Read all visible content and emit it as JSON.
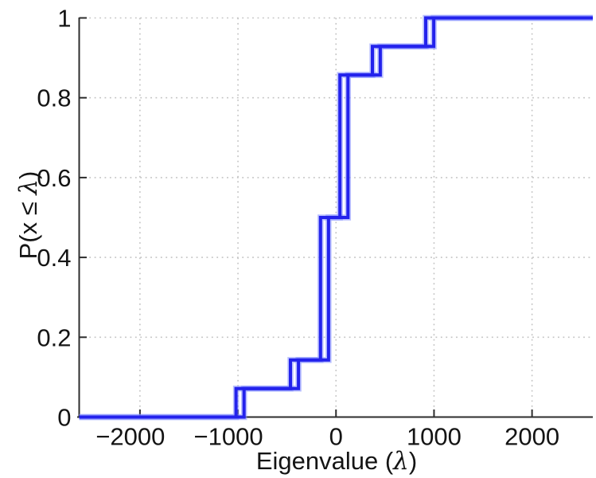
{
  "chart_data": {
    "type": "line",
    "subtype": "empirical-cdf-step",
    "title": "",
    "xlabel": "Eigenvalue (λ)",
    "ylabel": "P(x ≤ λ)",
    "xlabel_parts": {
      "pre": "Eigenvalue (",
      "sym": "λ",
      "post": ")"
    },
    "ylabel_parts": {
      "pre": "P(x ≤ ",
      "sym": "λ",
      "post": ")"
    },
    "xlim": [
      -2620,
      2620
    ],
    "ylim": [
      0,
      1
    ],
    "x_ticks": [
      {
        "value": -2000,
        "label": "−2000"
      },
      {
        "value": -1000,
        "label": "−1000"
      },
      {
        "value": 0,
        "label": "0"
      },
      {
        "value": 1000,
        "label": "1000"
      },
      {
        "value": 2000,
        "label": "2000"
      }
    ],
    "y_ticks": [
      {
        "value": 0,
        "label": "0"
      },
      {
        "value": 0.2,
        "label": "0.2"
      },
      {
        "value": 0.4,
        "label": "0.4"
      },
      {
        "value": 0.6,
        "label": "0.6"
      },
      {
        "value": 0.8,
        "label": "0.8"
      },
      {
        "value": 1,
        "label": "1"
      }
    ],
    "grid": "dotted",
    "legend": "none",
    "line_color": "#2322ec",
    "n_eigenvalues": 14,
    "levels": [
      0.0714,
      0.1429,
      0.5,
      0.8571,
      0.9286,
      1
    ],
    "jump_multiplicities": [
      1,
      1,
      5,
      5,
      1,
      1
    ],
    "series": [
      {
        "name": "ecdf-step-left",
        "jumps": [
          -1020,
          -465,
          -158,
          40,
          371,
          915
        ]
      },
      {
        "name": "ecdf-step-right",
        "jumps": [
          -938,
          -383,
          -76,
          122,
          452,
          997
        ]
      }
    ]
  }
}
